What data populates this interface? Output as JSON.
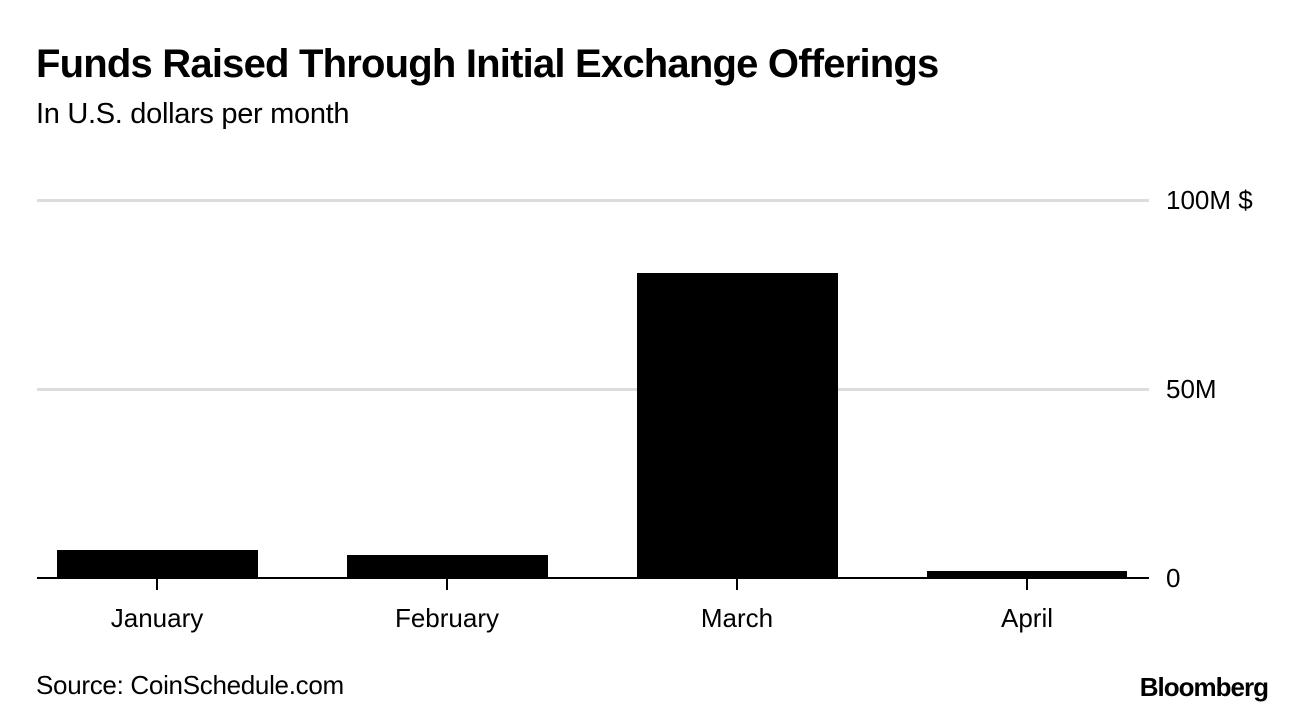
{
  "header": {
    "title": "Funds Raised Through Initial Exchange Offerings",
    "subtitle": "In U.S. dollars per month"
  },
  "axis": {
    "y_ticks": [
      {
        "label": "100M $",
        "value": 100
      },
      {
        "label": "50M",
        "value": 50
      },
      {
        "label": "0",
        "value": 0
      }
    ]
  },
  "bars": [
    {
      "label": "January",
      "value": 7.3
    },
    {
      "label": "February",
      "value": 6.2
    },
    {
      "label": "March",
      "value": 80.8
    },
    {
      "label": "April",
      "value": 1.9
    }
  ],
  "footer": {
    "source": "Source: CoinSchedule.com",
    "brand": "Bloomberg"
  },
  "colors": {
    "bar": "#000000",
    "gridline": "#dcdcdc",
    "baseline": "#000000"
  },
  "chart_data": {
    "type": "bar",
    "title": "Funds Raised Through Initial Exchange Offerings",
    "subtitle": "In U.S. dollars per month",
    "categories": [
      "January",
      "February",
      "March",
      "April"
    ],
    "values": [
      7.3,
      6.2,
      80.8,
      1.9
    ],
    "units": "millions of U.S. dollars",
    "xlabel": "",
    "ylabel": "",
    "ylim": [
      0,
      100
    ],
    "y_tick_labels": [
      "0",
      "50M",
      "100M $"
    ],
    "y_axis_position": "right",
    "grid": true,
    "legend": null,
    "source": "Source: CoinSchedule.com"
  }
}
